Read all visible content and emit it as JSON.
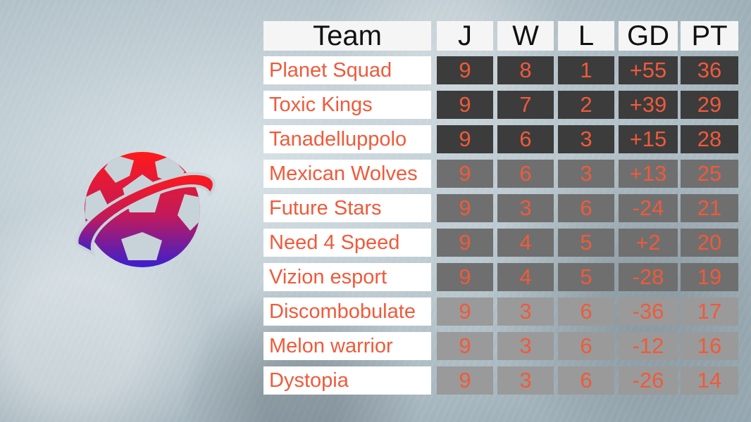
{
  "header": {
    "team": "Team",
    "j": "J",
    "w": "W",
    "l": "L",
    "gd": "GD",
    "pt": "PT"
  },
  "rows": [
    {
      "team": "Planet Squad",
      "j": "9",
      "w": "8",
      "l": "1",
      "gd": "+55",
      "pt": "36"
    },
    {
      "team": "Toxic Kings",
      "j": "9",
      "w": "7",
      "l": "2",
      "gd": "+39",
      "pt": "29"
    },
    {
      "team": "Tanadelluppolo",
      "j": "9",
      "w": "6",
      "l": "3",
      "gd": "+15",
      "pt": "28"
    },
    {
      "team": "Mexican Wolves",
      "j": "9",
      "w": "6",
      "l": "3",
      "gd": "+13",
      "pt": "25"
    },
    {
      "team": "Future Stars",
      "j": "9",
      "w": "3",
      "l": "6",
      "gd": "-24",
      "pt": "21"
    },
    {
      "team": "Need 4 Speed",
      "j": "9",
      "w": "4",
      "l": "5",
      "gd": "+2",
      "pt": "20"
    },
    {
      "team": "Vizion esport",
      "j": "9",
      "w": "4",
      "l": "5",
      "gd": "-28",
      "pt": "19"
    },
    {
      "team": "Discombobulate",
      "j": "9",
      "w": "3",
      "l": "6",
      "gd": "-36",
      "pt": "17"
    },
    {
      "team": "Melon warrior",
      "j": "9",
      "w": "3",
      "l": "6",
      "gd": "-12",
      "pt": "16"
    },
    {
      "team": "Dystopia",
      "j": "9",
      "w": "3",
      "l": "6",
      "gd": "-26",
      "pt": "14"
    }
  ],
  "colors": {
    "accent": "#f05a3a",
    "logo_top": "#ff1a1a",
    "logo_bottom": "#3a1fd0"
  }
}
